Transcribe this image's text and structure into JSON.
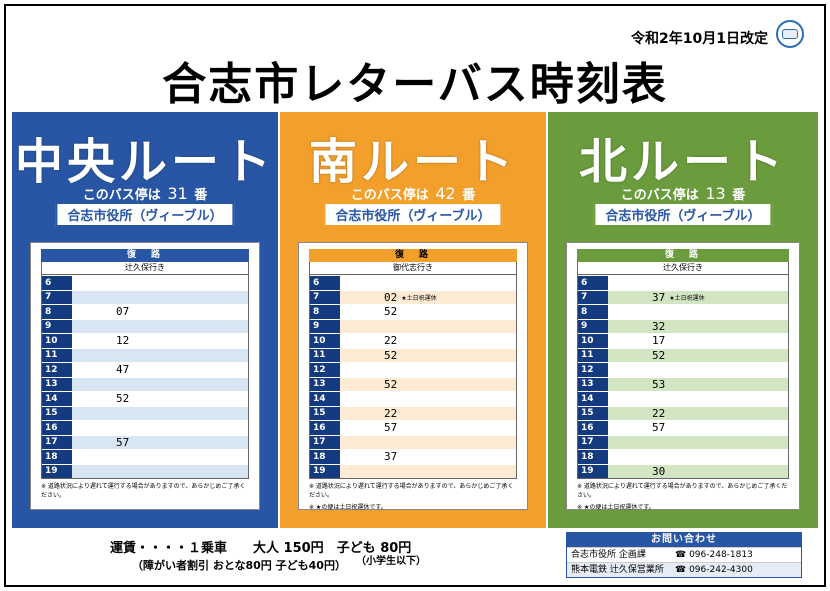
{
  "revision": "令和2年10月1日改定",
  "title": "合志市レターバス時刻表",
  "routes": {
    "central": {
      "name": "中央ルート",
      "stop_prefix": "このバス停は",
      "stop_number": "31",
      "stop_suffix": "番",
      "stop_name": "合志市役所（ヴィーブル）",
      "direction": "復　路",
      "destination": "辻久保行き",
      "rows": [
        {
          "h": "6",
          "m": ""
        },
        {
          "h": "7",
          "m": ""
        },
        {
          "h": "8",
          "m": "07"
        },
        {
          "h": "9",
          "m": ""
        },
        {
          "h": "10",
          "m": "12"
        },
        {
          "h": "11",
          "m": ""
        },
        {
          "h": "12",
          "m": "47"
        },
        {
          "h": "13",
          "m": ""
        },
        {
          "h": "14",
          "m": "52"
        },
        {
          "h": "15",
          "m": ""
        },
        {
          "h": "16",
          "m": ""
        },
        {
          "h": "17",
          "m": "57"
        },
        {
          "h": "18",
          "m": ""
        },
        {
          "h": "19",
          "m": ""
        }
      ],
      "footnote1": "※ 道路状況により遅れて運行する場合がありますので、あらかじめご了承ください。",
      "footnote2": ""
    },
    "south": {
      "name": "南ルート",
      "stop_prefix": "このバス停は",
      "stop_number": "42",
      "stop_suffix": "番",
      "stop_name": "合志市役所（ヴィーブル）",
      "direction": "復　路",
      "destination": "御代志行き",
      "rows": [
        {
          "h": "6",
          "m": ""
        },
        {
          "h": "7",
          "m": "02",
          "note": "★土日祝運休"
        },
        {
          "h": "8",
          "m": "52"
        },
        {
          "h": "9",
          "m": ""
        },
        {
          "h": "10",
          "m": "22"
        },
        {
          "h": "11",
          "m": "52"
        },
        {
          "h": "12",
          "m": ""
        },
        {
          "h": "13",
          "m": "52"
        },
        {
          "h": "14",
          "m": ""
        },
        {
          "h": "15",
          "m": "22"
        },
        {
          "h": "16",
          "m": "57"
        },
        {
          "h": "17",
          "m": ""
        },
        {
          "h": "18",
          "m": "37"
        },
        {
          "h": "19",
          "m": ""
        }
      ],
      "footnote1": "※ 道路状況により遅れて運行する場合がありますので、あらかじめご了承ください。",
      "footnote2": "※ ★の便は土日祝運休です。"
    },
    "north": {
      "name": "北ルート",
      "stop_prefix": "このバス停は",
      "stop_number": "13",
      "stop_suffix": "番",
      "stop_name": "合志市役所（ヴィーブル）",
      "direction": "復　路",
      "destination": "辻久保行き",
      "rows": [
        {
          "h": "6",
          "m": ""
        },
        {
          "h": "7",
          "m": "37",
          "note": "★土日祝運休"
        },
        {
          "h": "8",
          "m": ""
        },
        {
          "h": "9",
          "m": "32"
        },
        {
          "h": "10",
          "m": "17"
        },
        {
          "h": "11",
          "m": "52"
        },
        {
          "h": "12",
          "m": ""
        },
        {
          "h": "13",
          "m": "53"
        },
        {
          "h": "14",
          "m": ""
        },
        {
          "h": "15",
          "m": "22"
        },
        {
          "h": "16",
          "m": "57"
        },
        {
          "h": "17",
          "m": ""
        },
        {
          "h": "18",
          "m": ""
        },
        {
          "h": "19",
          "m": "30"
        }
      ],
      "footnote1": "※ 道路状況により遅れて運行する場合がありますので、あらかじめご了承ください。",
      "footnote2": "※ ★の便は土日祝運休です。"
    }
  },
  "fare": {
    "line1": "運賃・・・・１乗車　　大人 150円　子ども 80円",
    "line2": "（障がい者割引 おとな80円 子ども40円）",
    "child_note": "（小学生以下）"
  },
  "contact": {
    "heading": "お問い合わせ",
    "rows": [
      {
        "org": "合志市役所 企画課",
        "tel": "☎ 096-248-1813"
      },
      {
        "org": "熊本電鉄 辻久保営業所",
        "tel": "☎ 096-242-4300"
      }
    ]
  }
}
